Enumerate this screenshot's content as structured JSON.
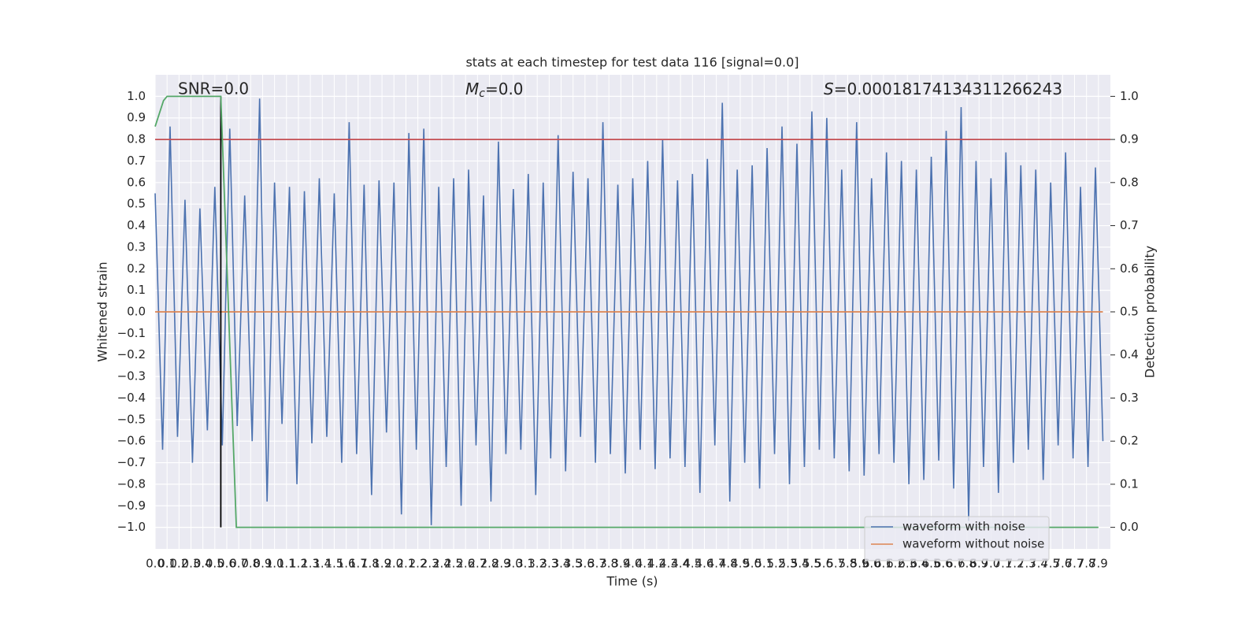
{
  "chart_data": {
    "type": "line",
    "title": "stats at each timestep for test data 116 [signal=0.0]",
    "xlabel": "Time (s)",
    "ylabel": "Whitened strain",
    "y2label": "Detection probability",
    "snr_label": "SNR=0.0",
    "mc_label": {
      "symbol": "M",
      "subscript": "c",
      "value": "=0.0"
    },
    "s_label": {
      "symbol": "S",
      "value": "=0.00018174134311266243"
    },
    "grid": true,
    "legend": "lower right",
    "xlim": [
      0,
      8
    ],
    "ylim": [
      -1.1,
      1.1
    ],
    "y2lim": [
      -0.05,
      1.05
    ],
    "xticks": [
      {
        "value": 0,
        "label": "0.0"
      },
      0.1,
      0.2,
      0.3,
      0.4,
      0.5,
      0.6,
      0.7,
      0.8,
      0.9,
      {
        "value": 1,
        "label": "1.0"
      },
      1.1,
      1.2,
      1.3,
      1.4,
      1.5,
      1.6,
      1.7,
      1.8,
      1.9,
      {
        "value": 2,
        "label": "2.0"
      },
      2.1,
      2.2,
      2.3,
      2.4,
      2.5,
      2.6,
      2.7,
      2.8,
      2.9,
      {
        "value": 3,
        "label": "3.0"
      },
      3.1,
      3.2,
      3.3,
      3.4,
      3.5,
      3.6,
      3.7,
      3.8,
      3.9,
      {
        "value": 4,
        "label": "4.0"
      },
      4.1,
      4.2,
      4.3,
      4.4,
      4.5,
      4.6,
      4.7,
      4.8,
      4.9,
      {
        "value": 5,
        "label": "5.0"
      },
      5.1,
      5.2,
      5.3,
      5.4,
      5.5,
      5.6,
      5.7,
      5.8,
      5.9,
      {
        "value": 6,
        "label": "6.0"
      },
      6.1,
      6.2,
      6.3,
      6.4,
      6.5,
      6.6,
      6.7,
      6.8,
      6.9,
      {
        "value": 7,
        "label": "7.0"
      },
      7.1,
      7.2,
      7.3,
      7.4,
      7.5,
      7.6,
      7.7,
      7.8,
      7.9
    ],
    "yticks": [
      {
        "value": -1,
        "label": "−1.0"
      },
      {
        "value": -0.9,
        "label": "−0.9"
      },
      {
        "value": -0.8,
        "label": "−0.8"
      },
      {
        "value": -0.7,
        "label": "−0.7"
      },
      {
        "value": -0.6,
        "label": "−0.6"
      },
      {
        "value": -0.5,
        "label": "−0.5"
      },
      {
        "value": -0.4,
        "label": "−0.4"
      },
      {
        "value": -0.3,
        "label": "−0.3"
      },
      {
        "value": -0.2,
        "label": "−0.2"
      },
      {
        "value": -0.1,
        "label": "−0.1"
      },
      {
        "value": 0,
        "label": "0.0"
      },
      0.1,
      0.2,
      0.3,
      0.4,
      0.5,
      0.6,
      0.7,
      0.8,
      0.9,
      {
        "value": 1,
        "label": "1.0"
      }
    ],
    "y2ticks": [
      {
        "value": 0,
        "label": "0.0"
      },
      0.1,
      0.2,
      0.3,
      0.4,
      0.5,
      0.6,
      0.7,
      0.8,
      0.9,
      {
        "value": 1,
        "label": "1.0"
      }
    ],
    "series": [
      {
        "name": "waveform with noise",
        "color": "#4c72b0",
        "x": [
          0,
          0.0625,
          0.125,
          0.1875,
          0.25,
          0.3125,
          0.375,
          0.4375,
          0.5,
          0.5625,
          0.625,
          0.6875,
          0.75,
          0.8125,
          0.875,
          0.9375,
          1,
          1.0625,
          1.125,
          1.1875,
          1.25,
          1.3125,
          1.375,
          1.4375,
          1.5,
          1.5625,
          1.625,
          1.6875,
          1.75,
          1.8125,
          1.875,
          1.9375,
          2,
          2.0625,
          2.125,
          2.1875,
          2.25,
          2.3125,
          2.375,
          2.4375,
          2.5,
          2.5625,
          2.625,
          2.6875,
          2.75,
          2.8125,
          2.875,
          2.9375,
          3,
          3.0625,
          3.125,
          3.1875,
          3.25,
          3.3125,
          3.375,
          3.4375,
          3.5,
          3.5625,
          3.625,
          3.6875,
          3.75,
          3.8125,
          3.875,
          3.9375,
          4,
          4.0625,
          4.125,
          4.1875,
          4.25,
          4.3125,
          4.375,
          4.4375,
          4.5,
          4.5625,
          4.625,
          4.6875,
          4.75,
          4.8125,
          4.875,
          4.9375,
          5,
          5.0625,
          5.125,
          5.1875,
          5.25,
          5.3125,
          5.375,
          5.4375,
          5.5,
          5.5625,
          5.625,
          5.6875,
          5.75,
          5.8125,
          5.875,
          5.9375,
          6,
          6.0625,
          6.125,
          6.1875,
          6.25,
          6.3125,
          6.375,
          6.4375,
          6.5,
          6.5625,
          6.625,
          6.6875,
          6.75,
          6.8125,
          6.875,
          6.9375,
          7,
          7.0625,
          7.125,
          7.1875,
          7.25,
          7.3125,
          7.375,
          7.4375,
          7.5,
          7.5625,
          7.625,
          7.6875,
          7.75,
          7.8125,
          7.875,
          7.9375
        ],
        "values": [
          0.55,
          -0.64,
          0.86,
          -0.58,
          0.52,
          -0.7,
          0.48,
          -0.55,
          0.58,
          -0.62,
          0.85,
          -0.53,
          0.54,
          -0.6,
          0.99,
          -0.88,
          0.6,
          -0.52,
          0.58,
          -0.8,
          0.56,
          -0.61,
          0.62,
          -0.58,
          0.55,
          -0.7,
          0.88,
          -0.66,
          0.59,
          -0.85,
          0.61,
          -0.56,
          0.6,
          -0.94,
          0.83,
          -0.64,
          0.85,
          -0.99,
          0.58,
          -0.72,
          0.62,
          -0.9,
          0.66,
          -0.62,
          0.54,
          -0.88,
          0.79,
          -0.66,
          0.57,
          -0.64,
          0.64,
          -0.85,
          0.6,
          -0.68,
          0.82,
          -0.74,
          0.65,
          -0.58,
          0.62,
          -0.7,
          0.88,
          -0.66,
          0.59,
          -0.75,
          0.62,
          -0.64,
          0.7,
          -0.73,
          0.8,
          -0.68,
          0.61,
          -0.72,
          0.64,
          -0.84,
          0.71,
          -0.62,
          0.97,
          -0.88,
          0.66,
          -0.7,
          0.68,
          -0.82,
          0.76,
          -0.66,
          0.86,
          -0.8,
          0.78,
          -0.72,
          0.93,
          -0.64,
          0.9,
          -0.68,
          0.66,
          -0.74,
          0.88,
          -0.76,
          0.62,
          -0.66,
          0.74,
          -0.7,
          0.7,
          -0.8,
          0.66,
          -0.78,
          0.72,
          -0.69,
          0.84,
          -0.82,
          0.95,
          -0.97,
          0.7,
          -0.72,
          0.62,
          -0.84,
          0.74,
          -0.7,
          0.68,
          -0.64,
          0.66,
          -0.78,
          0.6,
          -0.62,
          0.74,
          -0.68,
          0.58,
          -0.72,
          0.67,
          -0.6
        ]
      },
      {
        "name": "waveform without noise",
        "color": "#dd8452",
        "x": [
          0,
          7.9375
        ],
        "values": [
          0,
          0
        ]
      },
      {
        "color": "#c44e52",
        "axis": "y2",
        "x": [
          0,
          8
        ],
        "values": [
          0.9,
          0.9
        ]
      },
      {
        "color": "#000000",
        "x": [
          0.55,
          0.55
        ],
        "values": [
          1,
          -1
        ]
      },
      {
        "color": "#55a868",
        "axis": "y2",
        "x": [
          0,
          0.07,
          0.1,
          0.55,
          0.68,
          7.9
        ],
        "values": [
          0.93,
          0.99,
          1,
          1,
          0,
          0
        ]
      }
    ]
  }
}
